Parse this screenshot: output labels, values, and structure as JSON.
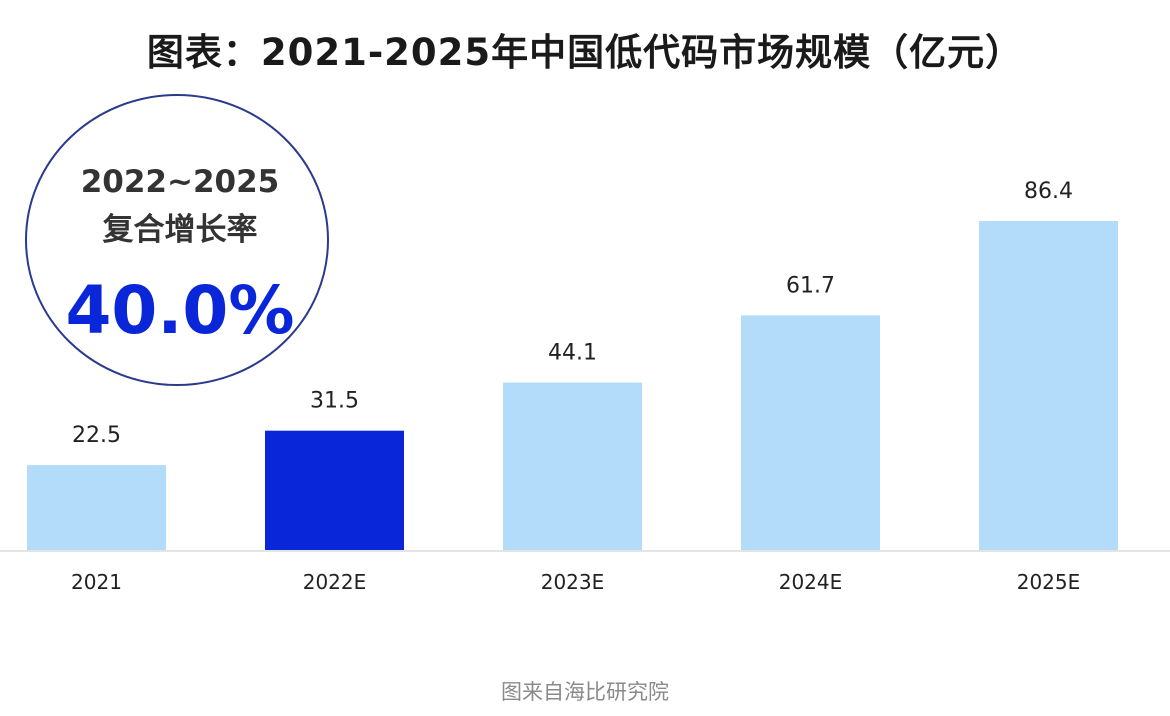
{
  "chart_data": {
    "type": "bar",
    "title": "图表：2021-2025年中国低代码市场规模（亿元）",
    "categories": [
      "2021",
      "2022E",
      "2023E",
      "2024E",
      "2025E"
    ],
    "values": [
      22.5,
      31.5,
      44.1,
      61.7,
      86.4
    ],
    "data_labels": [
      "22.5",
      "31.5",
      "44.1",
      "61.7",
      "86.4"
    ],
    "highlight_index": 1,
    "ylim": [
      0,
      90
    ],
    "grid": false,
    "xlabel": "",
    "ylabel": "",
    "colors": {
      "bar": "#b3dbfa",
      "highlight": "#0a26d9",
      "axis": "#e0e0e0"
    },
    "annotation": {
      "period": "2022~2025",
      "label": "复合增长率",
      "value": "40.0%",
      "circle_color": "#2a3a8c",
      "value_color": "#0a26d9"
    }
  },
  "source": "图来自海比研究院"
}
